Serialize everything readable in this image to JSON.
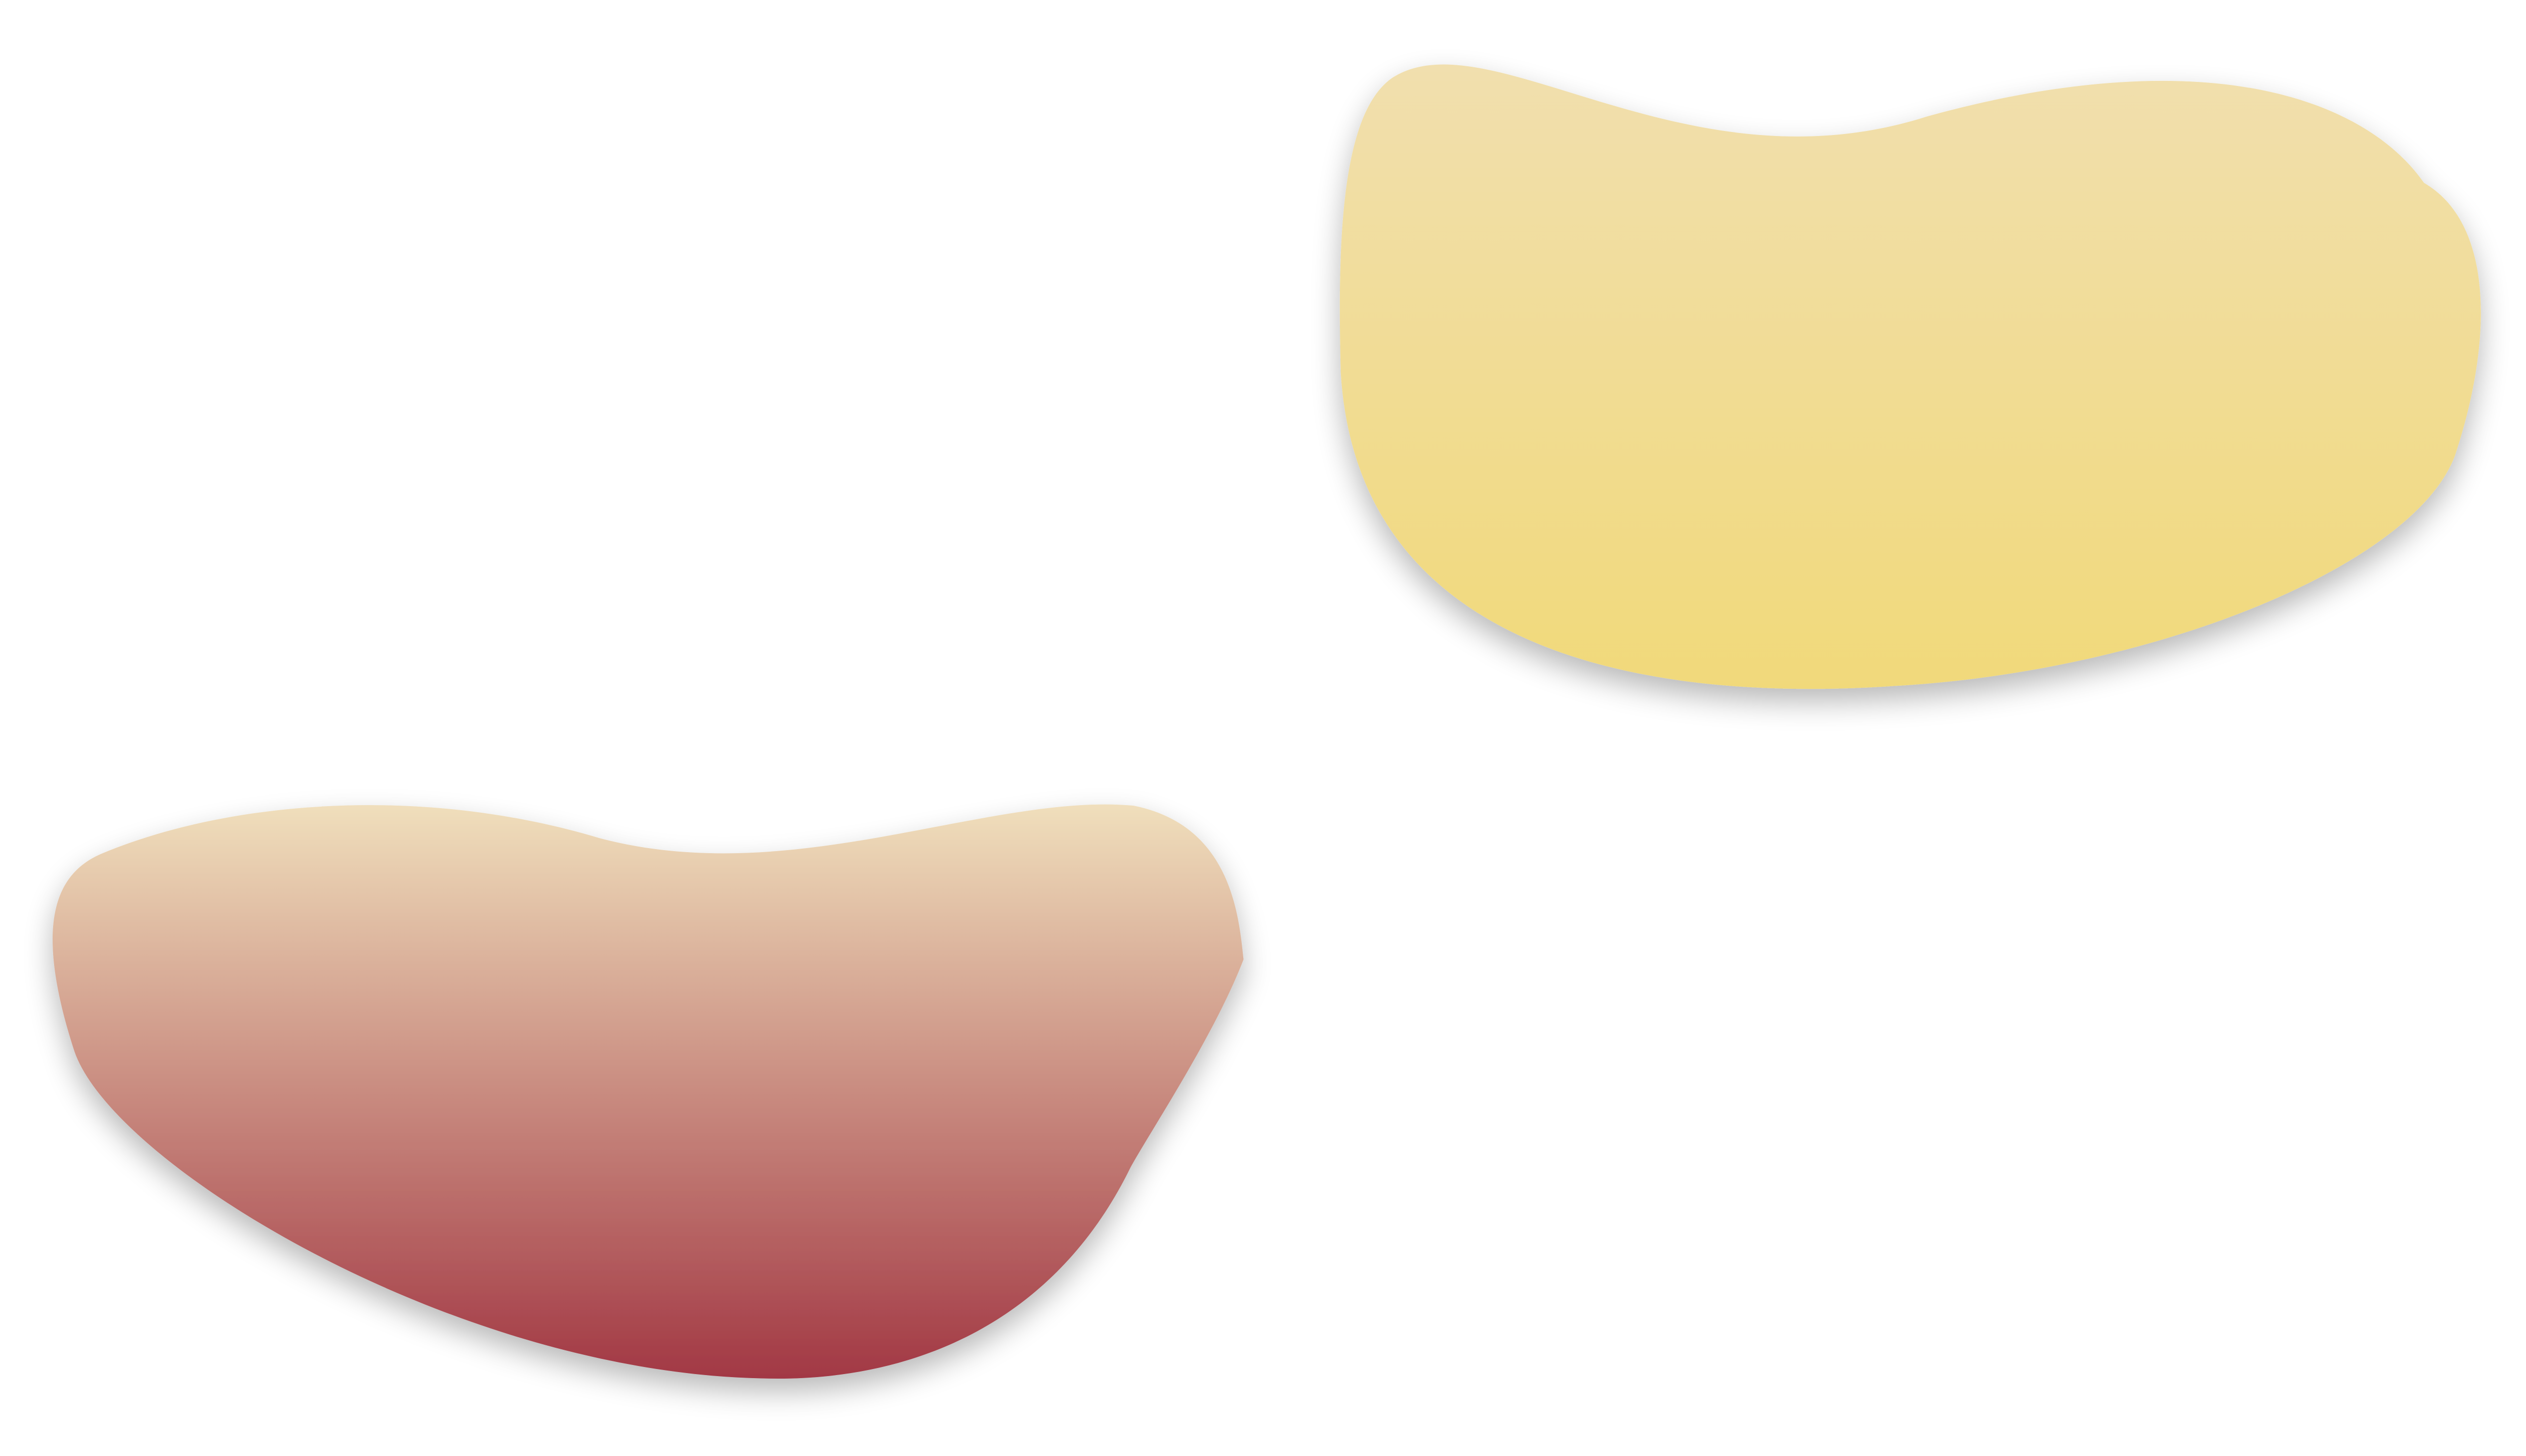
{
  "shapes": [
    {
      "id": "yellow-blob",
      "gradient_top": "#f1dfae",
      "gradient_bottom": "#f1d97a"
    },
    {
      "id": "red-blob",
      "gradient_top": "#f0dfbc",
      "gradient_bottom": "#a23844"
    }
  ],
  "shadow_color": "#000000"
}
